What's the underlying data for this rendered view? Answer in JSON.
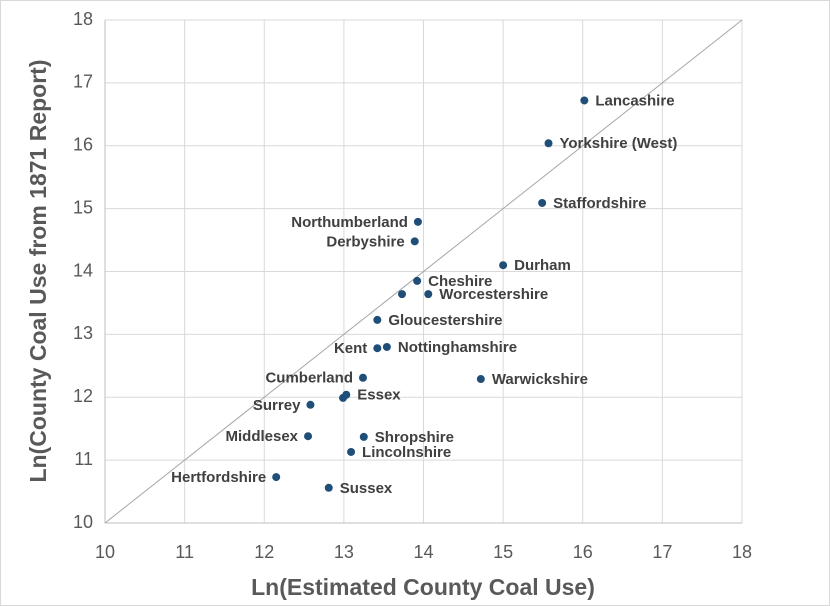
{
  "chart_data": {
    "type": "scatter",
    "xlabel": "Ln(Estimated County Coal Use)",
    "ylabel": "Ln(County Coal Use from 1871 Report)",
    "color": "#1f4e79",
    "labels": [
      "Lancashire",
      "Yorkshire (West)",
      "Staffordshire",
      "Northumberland",
      "Derbyshire",
      "Durham",
      "Cheshire",
      null,
      "Worcestershire",
      "Gloucestershire",
      "Kent",
      "Nottinghamshire",
      "Cumberland",
      "Warwickshire",
      "Essex",
      null,
      "Surrey",
      "Middlesex",
      "Shropshire",
      "Lincolnshire",
      "Hertfordshire",
      "Sussex"
    ],
    "x": [
      16.02,
      15.57,
      15.49,
      13.93,
      13.89,
      15.0,
      13.92,
      13.73,
      14.06,
      13.42,
      13.42,
      13.54,
      13.24,
      14.72,
      13.03,
      12.99,
      12.58,
      12.55,
      13.25,
      13.09,
      12.15,
      12.81
    ],
    "values": [
      16.72,
      16.04,
      15.09,
      14.79,
      14.48,
      14.1,
      13.85,
      13.64,
      13.64,
      13.23,
      12.78,
      12.8,
      12.31,
      12.29,
      12.04,
      11.99,
      11.88,
      11.38,
      11.37,
      11.13,
      10.73,
      10.56
    ],
    "xlim": [
      10,
      18
    ],
    "ylim": [
      10,
      18
    ],
    "xticks": [
      10,
      11,
      12,
      13,
      14,
      15,
      16,
      17,
      18
    ],
    "yticks": [
      10,
      11,
      12,
      13,
      14,
      15,
      16,
      17,
      18
    ],
    "grid": true
  }
}
